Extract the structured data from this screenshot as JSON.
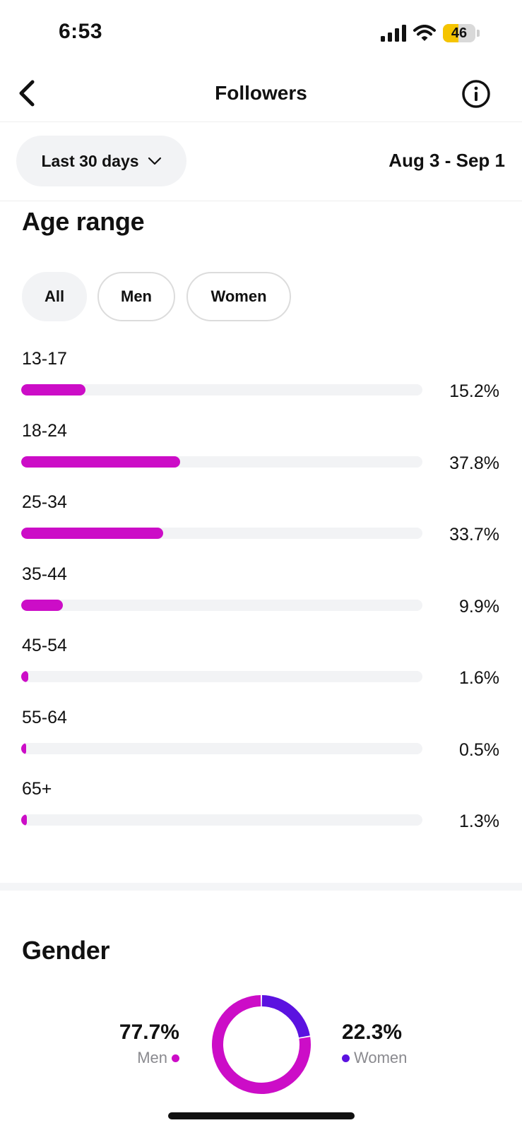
{
  "status_bar": {
    "time": "6:53",
    "battery": "46"
  },
  "header": {
    "title": "Followers"
  },
  "filter": {
    "period_label": "Last 30 days",
    "date_range": "Aug 3 - Sep 1"
  },
  "age_section": {
    "title": "Age range",
    "segments": [
      {
        "label": "All",
        "active": true
      },
      {
        "label": "Men",
        "active": false
      },
      {
        "label": "Women",
        "active": false
      }
    ]
  },
  "gender_section": {
    "title": "Gender"
  },
  "colors": {
    "men": "#cc0dc7",
    "women": "#5b12e0",
    "track": "#f2f3f5"
  },
  "icons": [
    "back-arrow-icon",
    "info-icon",
    "chevron-down-icon",
    "signal-icon",
    "wifi-icon",
    "battery-icon"
  ],
  "chart_data": [
    {
      "type": "bar",
      "orientation": "horizontal",
      "title": "Age range",
      "categories": [
        "13-17",
        "18-24",
        "25-34",
        "35-44",
        "45-54",
        "55-64",
        "65+"
      ],
      "values": [
        15.2,
        37.8,
        33.7,
        9.9,
        1.6,
        0.5,
        1.3
      ],
      "labels": [
        "15.2%",
        "37.8%",
        "33.7%",
        "9.9%",
        "1.6%",
        "0.5%",
        "1.3%"
      ],
      "xlim": [
        0,
        100
      ]
    },
    {
      "type": "pie",
      "style": "donut",
      "title": "Gender",
      "categories": [
        "Men",
        "Women"
      ],
      "values": [
        77.7,
        22.3
      ],
      "labels": [
        "77.7%",
        "22.3%"
      ]
    }
  ]
}
